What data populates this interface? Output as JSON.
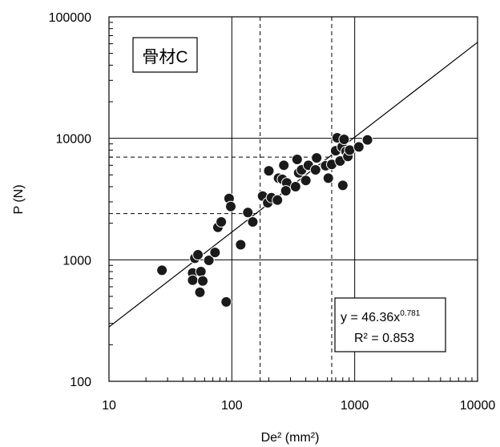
{
  "chart_data": {
    "type": "scatter",
    "xscale": "log",
    "yscale": "log",
    "xlim": [
      10,
      10000
    ],
    "ylim": [
      100,
      100000
    ],
    "xticks": [
      10,
      100,
      1000,
      10000
    ],
    "yticks": [
      100,
      1000,
      10000,
      100000
    ],
    "xtick_labels": [
      "10",
      "100",
      "1000",
      "10000"
    ],
    "ytick_labels": [
      "100",
      "1000",
      "10000",
      "100000"
    ],
    "xlabel": "De² (mm²)",
    "ylabel": "P (N)",
    "grid": true,
    "label_box": "骨材C",
    "annotation": {
      "equation_prefix": "y = 46.36x",
      "equation_exponent": "0.781",
      "r2": "R² = 0.853"
    },
    "trendline": {
      "a": 46.36,
      "b": 0.781
    },
    "reference_lines": {
      "x": [
        170,
        650
      ],
      "y": [
        2400,
        7000
      ]
    },
    "marker_color": "#1a1a1a",
    "points": [
      [
        27,
        820
      ],
      [
        48,
        780
      ],
      [
        48,
        680
      ],
      [
        50,
        1030
      ],
      [
        53,
        1100
      ],
      [
        55,
        540
      ],
      [
        56,
        800
      ],
      [
        58,
        670
      ],
      [
        65,
        990
      ],
      [
        73,
        1150
      ],
      [
        77,
        1850
      ],
      [
        82,
        2050
      ],
      [
        90,
        450
      ],
      [
        95,
        3200
      ],
      [
        98,
        2750
      ],
      [
        118,
        1330
      ],
      [
        135,
        2450
      ],
      [
        148,
        2050
      ],
      [
        178,
        3350
      ],
      [
        196,
        2950
      ],
      [
        200,
        5400
      ],
      [
        210,
        3250
      ],
      [
        235,
        3100
      ],
      [
        240,
        4700
      ],
      [
        258,
        4600
      ],
      [
        265,
        6000
      ],
      [
        280,
        4300
      ],
      [
        275,
        3700
      ],
      [
        330,
        4000
      ],
      [
        340,
        6700
      ],
      [
        350,
        5200
      ],
      [
        370,
        5500
      ],
      [
        400,
        4500
      ],
      [
        420,
        6000
      ],
      [
        480,
        5500
      ],
      [
        490,
        6900
      ],
      [
        580,
        5950
      ],
      [
        610,
        4700
      ],
      [
        650,
        6100
      ],
      [
        700,
        7900
      ],
      [
        720,
        10100
      ],
      [
        760,
        6500
      ],
      [
        790,
        8500
      ],
      [
        800,
        4100
      ],
      [
        820,
        9800
      ],
      [
        850,
        7800
      ],
      [
        880,
        7100
      ],
      [
        910,
        8000
      ],
      [
        1080,
        8500
      ],
      [
        1270,
        9700
      ]
    ]
  }
}
